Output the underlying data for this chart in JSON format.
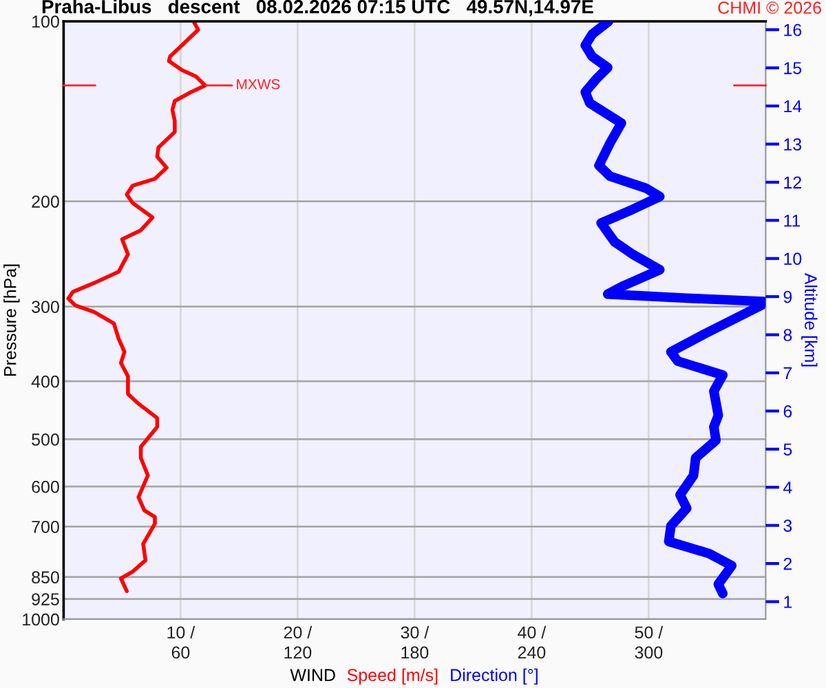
{
  "chart_data": {
    "type": "line",
    "title": "Praha-Libus   descent   08.02.2026 07:15 UTC   49.57N,14.97E",
    "xlabel": "WIND",
    "ylabel": "Pressure [hPa]",
    "y2label": "Altitude [km]",
    "annotations": [
      "CHMI © 2026",
      {
        "text": "MXWS",
        "x": 12.1,
        "y": 128
      }
    ],
    "log": "y",
    "grid": true,
    "legend": false,
    "marker": "none",
    "line_style": "solid",
    "xlim": [
      0,
      60
    ],
    "xticks": [
      {
        "value": 10,
        "label": "10 /"
      },
      {
        "value": 20,
        "label": "20 /"
      },
      {
        "value": 30,
        "label": "30 /"
      },
      {
        "value": 40,
        "label": "40 /"
      },
      {
        "value": 50,
        "label": "50 /"
      }
    ],
    "x2lim": [
      0,
      360
    ],
    "x2ticks": [
      60,
      120,
      180,
      240,
      300
    ],
    "ylim": [
      1000,
      100
    ],
    "yticks": [
      100,
      200,
      300,
      400,
      500,
      600,
      700,
      850,
      925,
      1000
    ],
    "y2lim": [
      0.54,
      16.22
    ],
    "y2ticks": [
      1,
      2,
      3,
      4,
      5,
      6,
      7,
      8,
      9,
      10,
      11,
      12,
      13,
      14,
      15,
      16
    ],
    "series": [
      {
        "name": "Speed [m/s]",
        "color": "#ff0000",
        "x": [
          11.1,
          11.5,
          10.3,
          9.1,
          9.0,
          10.1,
          11.3,
          12.1,
          10.9,
          9.5,
          9.3,
          9.5,
          9.5,
          8.9,
          8.1,
          8.0,
          8.8,
          7.8,
          5.9,
          5.4,
          5.9,
          7.6,
          6.6,
          5.0,
          5.5,
          4.7,
          2.6,
          0.8,
          0.4,
          1.0,
          2.6,
          4.3,
          4.7,
          5.2,
          4.9,
          5.5,
          5.5,
          6.3,
          8.0,
          8.0,
          6.6,
          6.6,
          7.2,
          6.4,
          6.9,
          7.8,
          7.8,
          6.8,
          7.0,
          5.9,
          4.9,
          5.4
        ],
        "values": [
          100,
          103.3,
          108.8,
          114.5,
          116.5,
          120.6,
          123.6,
          128,
          131.3,
          135.9,
          140.6,
          146.7,
          153.1,
          157.1,
          162.6,
          168.4,
          175.7,
          183.4,
          188.3,
          194.8,
          201.3,
          212.8,
          223.6,
          231.5,
          245.3,
          262.4,
          274,
          283.4,
          290.9,
          298.6,
          306.3,
          320.2,
          339.4,
          357.1,
          372.7,
          392.5,
          420,
          434.4,
          460.9,
          476.8,
          514.8,
          537.1,
          574.8,
          624.9,
          657.6,
          674.6,
          692.2,
          748.6,
          797,
          832.7,
          854.7,
          897.4
        ]
      },
      {
        "name": "Direction [°]",
        "color": "#0000ff",
        "axis": "x2",
        "x": [
          279.5,
          271,
          267.5,
          271,
          279,
          273.3,
          267.5,
          269.8,
          286,
          280.2,
          274.5,
          280.2,
          298.7,
          305.7,
          291.8,
          275.6,
          282.5,
          291.8,
          305.7,
          287.2,
          279,
          319.5,
          358.8,
          357.7,
          328.8,
          311.4,
          314.9,
          338,
          333.4,
          335.7,
          333.4,
          334.5,
          324.1,
          323,
          316.1,
          319.5,
          311.4,
          310.3,
          331,
          342.6,
          335.7,
          338
        ],
        "values": [
          100,
          105.1,
          109.7,
          114.5,
          119.5,
          124.7,
          131.3,
          137,
          148,
          159.8,
          174.2,
          181.6,
          190.2,
          196.4,
          206.3,
          217.4,
          233.8,
          245.3,
          260.3,
          276.8,
          285.9,
          290.4,
          294.1,
          298.6,
          333.1,
          357.1,
          370.2,
          390.5,
          415.5,
          456,
          476.8,
          502,
          537.1,
          574.8,
          619.4,
          652.3,
          698.2,
          741.3,
          776.5,
          813.7,
          874,
          906
        ]
      }
    ]
  }
}
